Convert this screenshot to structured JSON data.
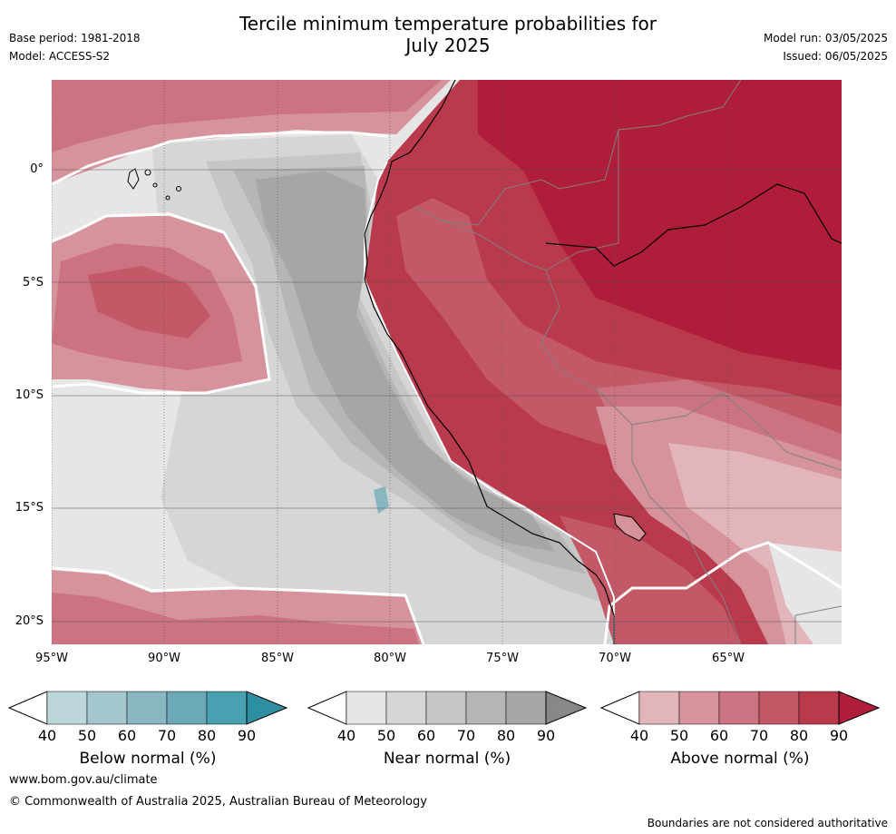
{
  "title": {
    "line1": "Tercile minimum temperature probabilities for",
    "line2": "July 2025"
  },
  "meta": {
    "base_period": "Base period: 1981-2018",
    "model": "Model: ACCESS-S2",
    "model_run": "Model run: 03/05/2025",
    "issued": "Issued: 06/05/2025"
  },
  "map": {
    "lat_labels": [
      "0°",
      "5°S",
      "10°S",
      "15°S",
      "20°S"
    ],
    "lon_labels": [
      "95°W",
      "90°W",
      "85°W",
      "80°W",
      "75°W",
      "70°W",
      "65°W"
    ]
  },
  "legend": {
    "ticks": [
      "40",
      "50",
      "60",
      "70",
      "80",
      "90"
    ],
    "below": {
      "label": "Below normal (%)",
      "colors": [
        "#bdd6dc",
        "#a4c7ce",
        "#88b7c1",
        "#6aa9b5",
        "#47a1b1",
        "#2f8fa2"
      ]
    },
    "near": {
      "label": "Near normal (%)",
      "colors": [
        "#e6e6e6",
        "#d6d6d6",
        "#c6c6c6",
        "#b6b6b6",
        "#a6a6a6",
        "#888888"
      ]
    },
    "above": {
      "label": "Above normal (%)",
      "colors": [
        "#e2b5bb",
        "#d6939b",
        "#cb7380",
        "#c35866",
        "#ba3a4d",
        "#b01d3b"
      ]
    }
  },
  "footer": {
    "url": "www.bom.gov.au/climate",
    "copyright": "© Commonwealth of Australia 2025, Australian Bureau of Meteorology",
    "note": "Boundaries are not considered authoritative"
  }
}
